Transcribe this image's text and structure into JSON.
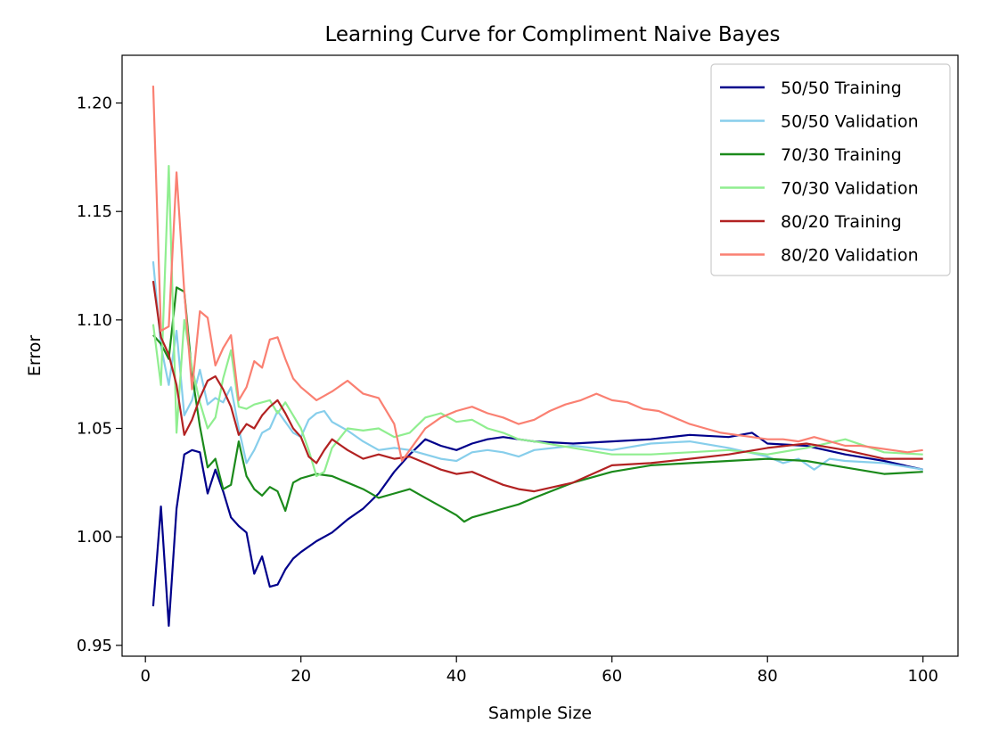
{
  "chart_data": {
    "type": "line",
    "title": "Learning Curve for Compliment Naive Bayes",
    "xlabel": "Sample Size",
    "ylabel": "Error",
    "xlim": [
      -3,
      104.5
    ],
    "ylim": [
      0.945,
      1.222
    ],
    "xticks": [
      0,
      20,
      40,
      60,
      80,
      100
    ],
    "yticks": [
      0.95,
      1.0,
      1.05,
      1.1,
      1.15,
      1.2
    ],
    "ytick_labels": [
      "0.95",
      "1.00",
      "1.05",
      "1.10",
      "1.15",
      "1.20"
    ],
    "grid": false,
    "legend_position": "top-right",
    "series": [
      {
        "name": "50/50 Training",
        "color": "#00008b",
        "x": [
          1,
          2,
          3,
          4,
          5,
          6,
          7,
          8,
          9,
          10,
          11,
          12,
          13,
          14,
          15,
          16,
          17,
          18,
          19,
          20,
          22,
          24,
          26,
          28,
          30,
          32,
          34,
          36,
          38,
          40,
          42,
          44,
          46,
          48,
          50,
          55,
          60,
          65,
          70,
          75,
          78,
          80,
          85,
          90,
          95,
          100
        ],
        "y": [
          0.968,
          1.014,
          0.959,
          1.013,
          1.038,
          1.04,
          1.039,
          1.02,
          1.031,
          1.021,
          1.009,
          1.005,
          1.002,
          0.983,
          0.991,
          0.977,
          0.978,
          0.985,
          0.99,
          0.993,
          0.998,
          1.002,
          1.008,
          1.013,
          1.02,
          1.03,
          1.038,
          1.045,
          1.042,
          1.04,
          1.043,
          1.045,
          1.046,
          1.045,
          1.044,
          1.043,
          1.044,
          1.045,
          1.047,
          1.046,
          1.048,
          1.043,
          1.042,
          1.038,
          1.035,
          1.031
        ]
      },
      {
        "name": "50/50 Validation",
        "color": "#87ceeb",
        "x": [
          1,
          2,
          3,
          4,
          5,
          6,
          7,
          8,
          9,
          10,
          11,
          12,
          13,
          14,
          15,
          16,
          17,
          18,
          19,
          20,
          21,
          22,
          23,
          24,
          26,
          28,
          30,
          32,
          34,
          36,
          38,
          40,
          42,
          44,
          46,
          48,
          50,
          55,
          60,
          65,
          70,
          75,
          80,
          82,
          84,
          86,
          88,
          90,
          95,
          100
        ],
        "y": [
          1.127,
          1.088,
          1.07,
          1.095,
          1.056,
          1.063,
          1.077,
          1.061,
          1.064,
          1.062,
          1.069,
          1.05,
          1.034,
          1.04,
          1.048,
          1.05,
          1.058,
          1.053,
          1.048,
          1.046,
          1.054,
          1.057,
          1.058,
          1.053,
          1.049,
          1.044,
          1.04,
          1.041,
          1.04,
          1.038,
          1.036,
          1.035,
          1.039,
          1.04,
          1.039,
          1.037,
          1.04,
          1.042,
          1.04,
          1.043,
          1.044,
          1.041,
          1.037,
          1.034,
          1.036,
          1.031,
          1.036,
          1.035,
          1.034,
          1.031
        ]
      },
      {
        "name": "70/30 Training",
        "color": "#1b8a1b",
        "x": [
          1,
          2,
          3,
          4,
          5,
          6,
          7,
          8,
          9,
          10,
          11,
          12,
          13,
          14,
          15,
          16,
          17,
          18,
          19,
          20,
          22,
          24,
          26,
          28,
          30,
          32,
          34,
          36,
          38,
          40,
          41,
          42,
          44,
          46,
          48,
          50,
          55,
          60,
          65,
          70,
          75,
          80,
          85,
          90,
          95,
          100
        ],
        "y": [
          1.093,
          1.089,
          1.082,
          1.115,
          1.113,
          1.075,
          1.051,
          1.032,
          1.036,
          1.022,
          1.024,
          1.044,
          1.028,
          1.022,
          1.019,
          1.023,
          1.021,
          1.012,
          1.025,
          1.027,
          1.029,
          1.028,
          1.025,
          1.022,
          1.018,
          1.02,
          1.022,
          1.018,
          1.014,
          1.01,
          1.007,
          1.009,
          1.011,
          1.013,
          1.015,
          1.018,
          1.025,
          1.03,
          1.033,
          1.034,
          1.035,
          1.036,
          1.035,
          1.032,
          1.029,
          1.03
        ]
      },
      {
        "name": "70/30 Validation",
        "color": "#90ee90",
        "x": [
          1,
          2,
          3,
          4,
          5,
          6,
          7,
          8,
          9,
          10,
          11,
          12,
          13,
          14,
          15,
          16,
          17,
          18,
          19,
          20,
          21,
          22,
          23,
          24,
          26,
          28,
          30,
          32,
          34,
          36,
          38,
          40,
          42,
          44,
          46,
          48,
          50,
          55,
          60,
          65,
          70,
          75,
          80,
          85,
          90,
          95,
          100
        ],
        "y": [
          1.098,
          1.07,
          1.171,
          1.048,
          1.1,
          1.078,
          1.062,
          1.05,
          1.055,
          1.073,
          1.086,
          1.06,
          1.059,
          1.061,
          1.062,
          1.063,
          1.057,
          1.062,
          1.056,
          1.05,
          1.04,
          1.028,
          1.03,
          1.041,
          1.05,
          1.049,
          1.05,
          1.046,
          1.048,
          1.055,
          1.057,
          1.053,
          1.054,
          1.05,
          1.048,
          1.045,
          1.044,
          1.041,
          1.038,
          1.038,
          1.039,
          1.04,
          1.038,
          1.041,
          1.045,
          1.039,
          1.038
        ]
      },
      {
        "name": "80/20 Training",
        "color": "#b22222",
        "x": [
          1,
          2,
          3,
          4,
          5,
          6,
          7,
          8,
          9,
          10,
          11,
          12,
          13,
          14,
          15,
          16,
          17,
          18,
          19,
          20,
          21,
          22,
          23,
          24,
          26,
          28,
          30,
          32,
          34,
          36,
          38,
          40,
          42,
          44,
          46,
          48,
          50,
          55,
          60,
          65,
          70,
          75,
          80,
          85,
          90,
          95,
          100
        ],
        "y": [
          1.118,
          1.092,
          1.084,
          1.07,
          1.047,
          1.054,
          1.064,
          1.072,
          1.074,
          1.068,
          1.06,
          1.047,
          1.052,
          1.05,
          1.056,
          1.06,
          1.063,
          1.057,
          1.05,
          1.046,
          1.037,
          1.034,
          1.04,
          1.045,
          1.04,
          1.036,
          1.038,
          1.036,
          1.037,
          1.034,
          1.031,
          1.029,
          1.03,
          1.027,
          1.024,
          1.022,
          1.021,
          1.025,
          1.033,
          1.034,
          1.036,
          1.038,
          1.041,
          1.043,
          1.04,
          1.036,
          1.036
        ]
      },
      {
        "name": "80/20 Validation",
        "color": "#fa8072",
        "x": [
          1,
          2,
          3,
          4,
          5,
          6,
          7,
          8,
          9,
          10,
          11,
          12,
          13,
          14,
          15,
          16,
          17,
          18,
          19,
          20,
          22,
          24,
          26,
          28,
          30,
          32,
          33,
          34,
          36,
          38,
          40,
          42,
          44,
          46,
          48,
          50,
          52,
          54,
          56,
          58,
          60,
          62,
          64,
          66,
          68,
          70,
          72,
          74,
          76,
          78,
          80,
          82,
          84,
          86,
          88,
          90,
          92,
          94,
          96,
          98,
          100
        ],
        "y": [
          1.208,
          1.095,
          1.097,
          1.168,
          1.113,
          1.068,
          1.104,
          1.101,
          1.079,
          1.087,
          1.093,
          1.063,
          1.069,
          1.081,
          1.078,
          1.091,
          1.092,
          1.082,
          1.073,
          1.069,
          1.063,
          1.067,
          1.072,
          1.066,
          1.064,
          1.052,
          1.035,
          1.04,
          1.05,
          1.055,
          1.058,
          1.06,
          1.057,
          1.055,
          1.052,
          1.054,
          1.058,
          1.061,
          1.063,
          1.066,
          1.063,
          1.062,
          1.059,
          1.058,
          1.055,
          1.052,
          1.05,
          1.048,
          1.047,
          1.046,
          1.045,
          1.045,
          1.044,
          1.046,
          1.044,
          1.042,
          1.042,
          1.041,
          1.04,
          1.039,
          1.04
        ]
      }
    ]
  }
}
